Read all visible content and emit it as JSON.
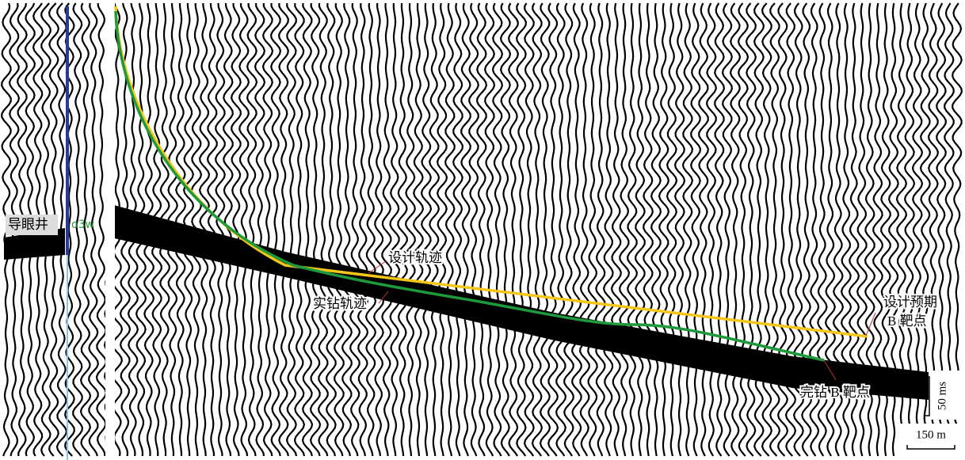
{
  "pilot_well": {
    "label": "导眼井",
    "tag": "o3w"
  },
  "annotations": {
    "design_track": "设计轨迹",
    "actual_track": "实钻轨迹",
    "design_target": [
      "设计预期",
      "B 靶点"
    ],
    "final_target": "完钻 B 靶点"
  },
  "scale_bar": {
    "vertical": "50 ms",
    "horizontal": "150 m"
  }
}
